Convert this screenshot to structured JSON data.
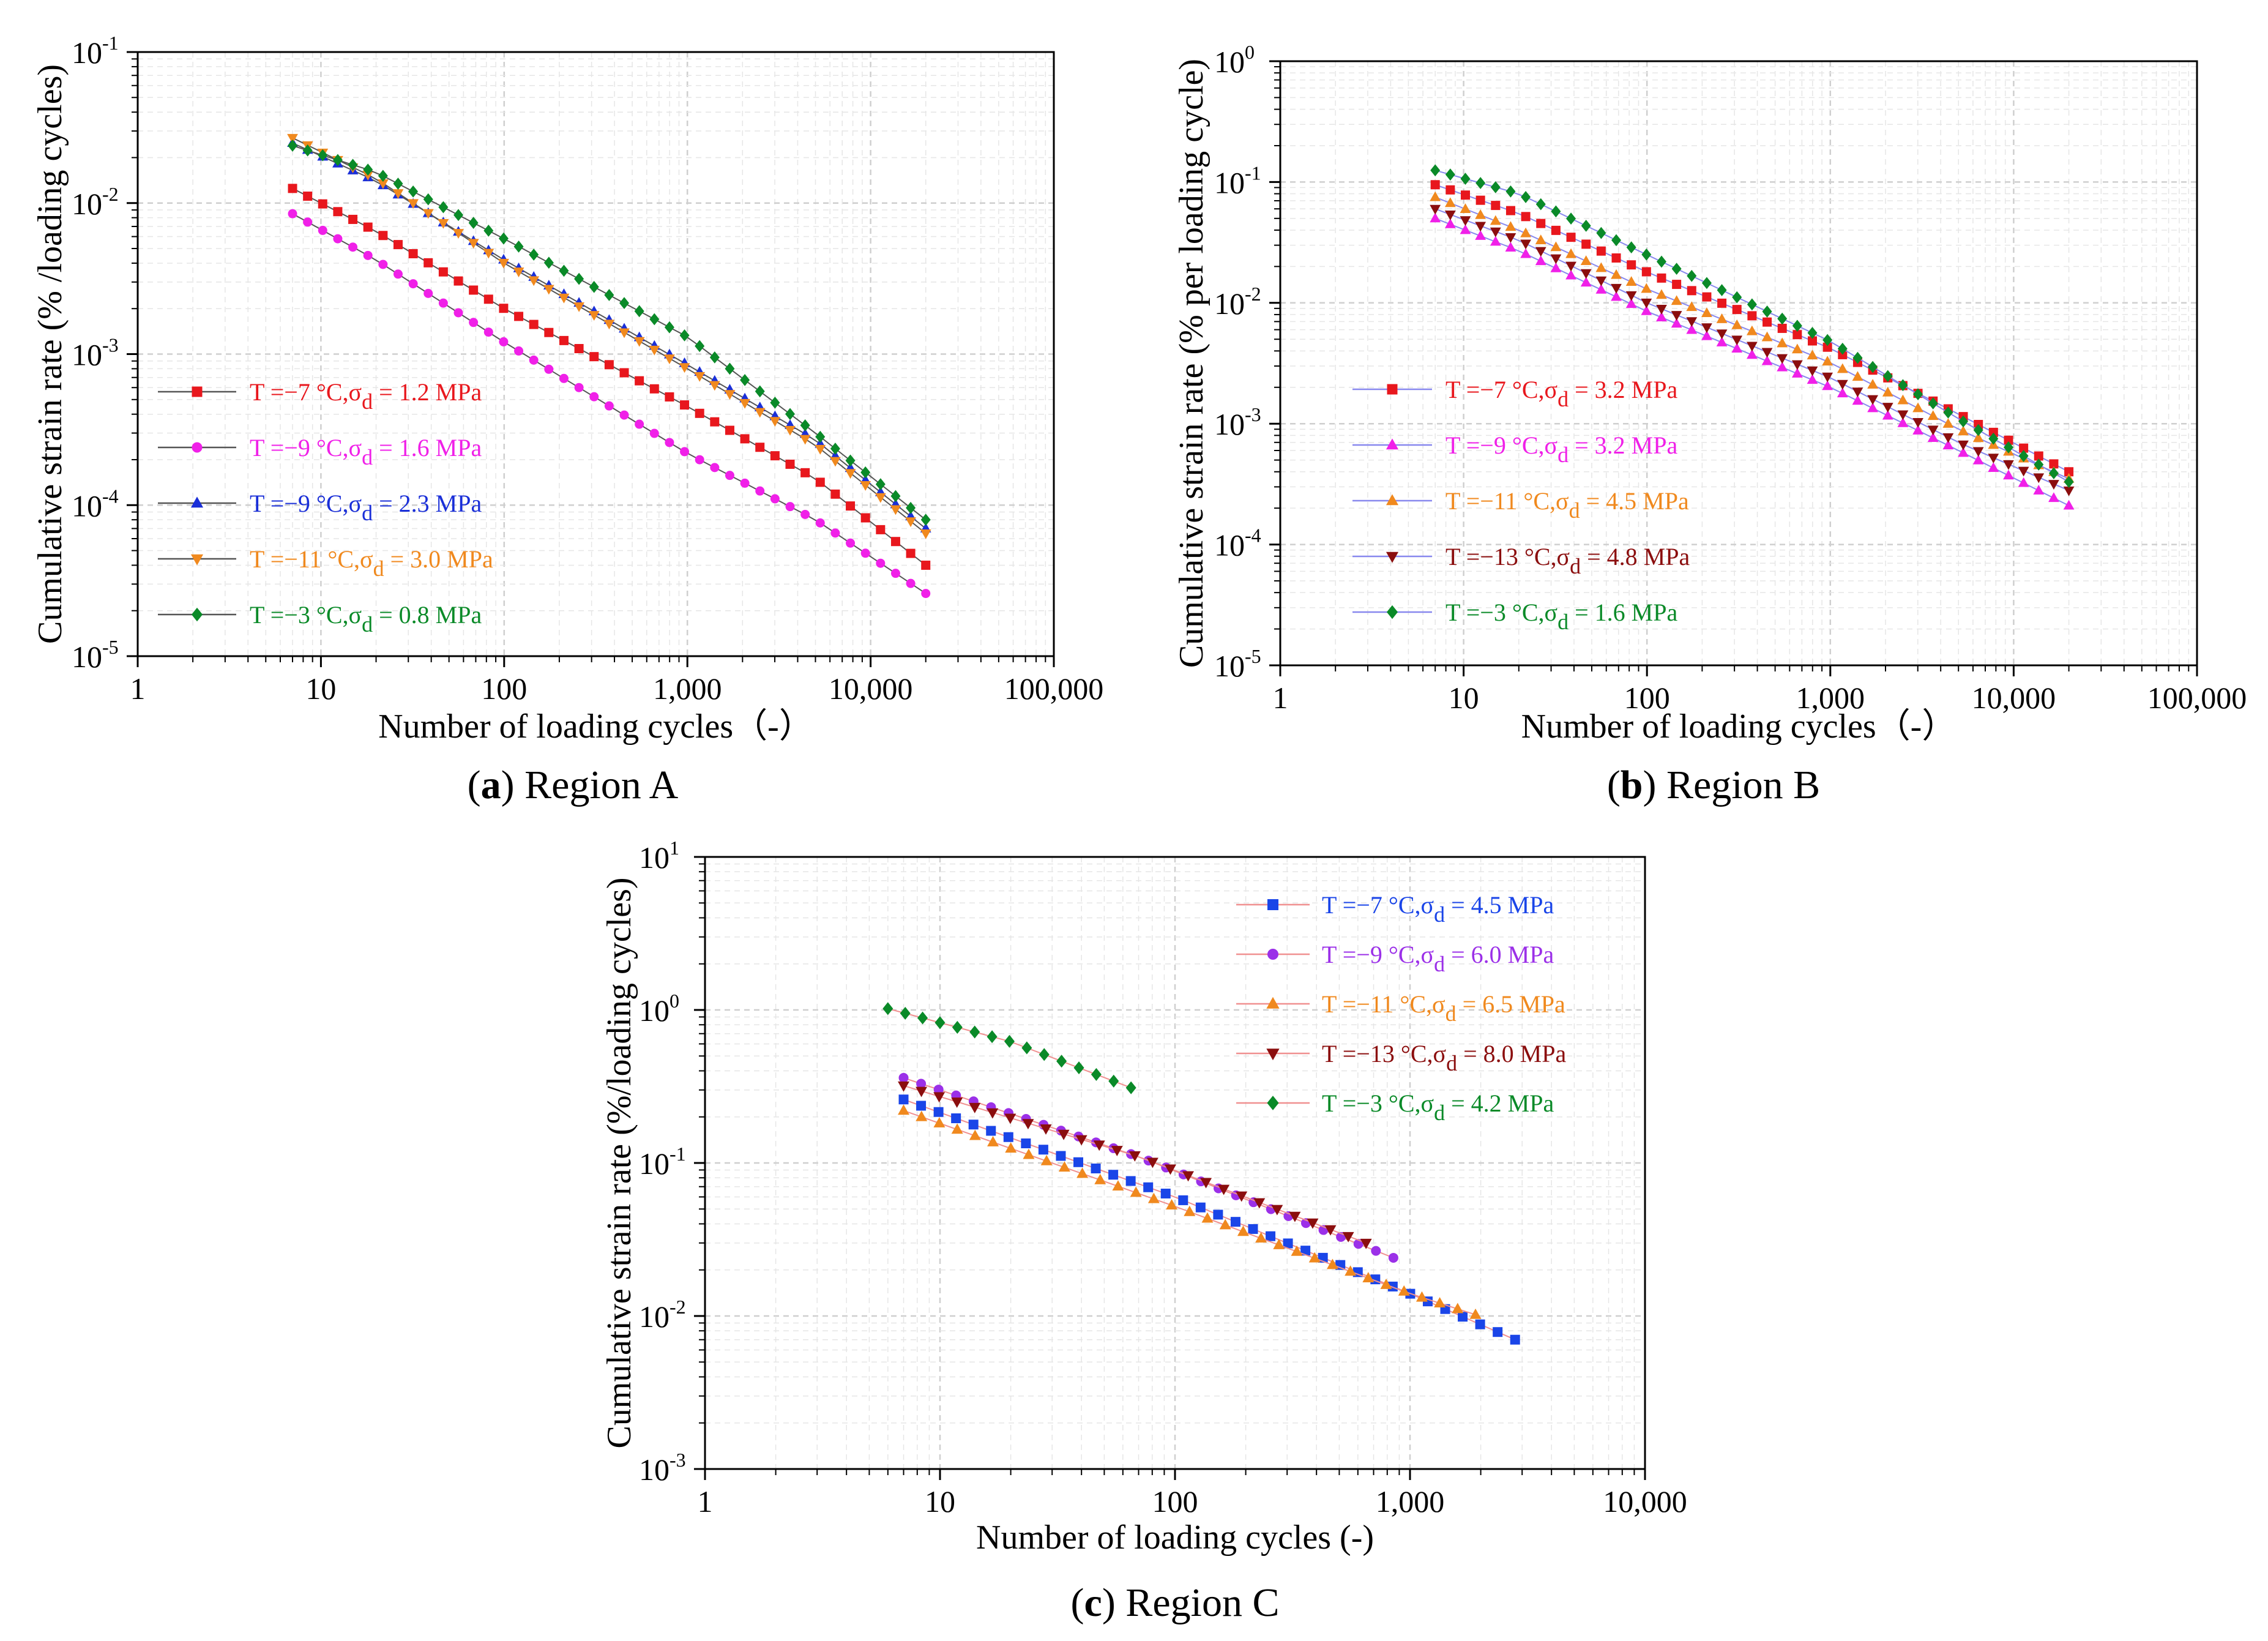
{
  "chart_data": [
    {
      "type": "line",
      "panel": "a",
      "caption_letter": "a",
      "caption_text": ") Region A",
      "xlabel": "Number of loading cycles（-）",
      "ylabel": "Cumulative strain rate (% /loading cycles)",
      "xscale": "log",
      "yscale": "log",
      "xlim": [
        1,
        100000
      ],
      "ylim": [
        1e-05,
        0.1
      ],
      "grid": true,
      "legend_position": "left",
      "x_tick_labels": [
        "1",
        "10",
        "100",
        "1,000",
        "10,000",
        "100,000"
      ],
      "y_tick_labels": [
        {
          "base": "10",
          "exp": "-5"
        },
        {
          "base": "10",
          "exp": "-4"
        },
        {
          "base": "10",
          "exp": "-3"
        },
        {
          "base": "10",
          "exp": "-2"
        },
        {
          "base": "10",
          "exp": "-1"
        }
      ],
      "series": [
        {
          "name": "T =−7 °C,σd = 1.2 MPa",
          "label_pre": "T =−7 °C,σ",
          "label_sub": "d",
          "label_post": " = 1.2 MPa",
          "color": "#e8171d",
          "marker": "square",
          "line_color": "#555555",
          "points": [
            [
              7,
              0.0125
            ],
            [
              20,
              0.0065
            ],
            [
              100,
              0.002
            ],
            [
              1000,
              0.00045
            ],
            [
              5000,
              0.00015
            ],
            [
              20000,
              4e-05
            ]
          ]
        },
        {
          "name": "T =−9 °C,σd = 1.6 MPa",
          "label_pre": "T =−9 °C,σ",
          "label_sub": "d",
          "label_post": " = 1.6 MPa",
          "color": "#f020e8",
          "marker": "circle",
          "line_color": "#555555",
          "points": [
            [
              7,
              0.0085
            ],
            [
              20,
              0.0042
            ],
            [
              100,
              0.0012
            ],
            [
              1000,
              0.00022
            ],
            [
              5000,
              8e-05
            ],
            [
              20000,
              2.6e-05
            ]
          ]
        },
        {
          "name": "T =−9 °C,σd = 2.3 MPa",
          "label_pre": "T =−9 °C,σ",
          "label_sub": "d",
          "label_post": " = 2.3 MPa",
          "color": "#1a2fd8",
          "marker": "triangle-up",
          "line_color": "#555555",
          "points": [
            [
              7,
              0.025
            ],
            [
              20,
              0.014
            ],
            [
              100,
              0.0042
            ],
            [
              1000,
              0.00085
            ],
            [
              5000,
              0.00027
            ],
            [
              20000,
              7e-05
            ]
          ]
        },
        {
          "name": "T =−11 °C,σd = 3.0 MPa",
          "label_pre": "T =−11 °C,σ",
          "label_sub": "d",
          "label_post": " = 3.0 MPa",
          "color": "#f0891e",
          "marker": "triangle-down",
          "line_color": "#555555",
          "points": [
            [
              7,
              0.027
            ],
            [
              20,
              0.0145
            ],
            [
              100,
              0.004
            ],
            [
              1000,
              0.0008
            ],
            [
              5000,
              0.00025
            ],
            [
              20000,
              6.5e-05
            ]
          ]
        },
        {
          "name": "T =−3 °C,σd = 0.8 MPa",
          "label_pre": "T =−3 °C,σ",
          "label_sub": "d",
          "label_post": " = 0.8 MPa",
          "color": "#0a8a28",
          "marker": "diamond",
          "line_color": "#555555",
          "points": [
            [
              7,
              0.024
            ],
            [
              20,
              0.016
            ],
            [
              100,
              0.0058
            ],
            [
              1000,
              0.0013
            ],
            [
              5000,
              0.0003
            ],
            [
              20000,
              8e-05
            ]
          ]
        }
      ]
    },
    {
      "type": "line",
      "panel": "b",
      "caption_letter": "b",
      "caption_text": ") Region B",
      "xlabel": "Number of loading cycles（-）",
      "ylabel": "Cumulative strain rate (% per loading cycle)",
      "xscale": "log",
      "yscale": "log",
      "xlim": [
        1,
        100000
      ],
      "ylim": [
        1e-05,
        1
      ],
      "grid": true,
      "legend_position": "left",
      "x_tick_labels": [
        "1",
        "10",
        "100",
        "1,000",
        "10,000",
        "100,000"
      ],
      "y_tick_labels": [
        {
          "base": "10",
          "exp": "-5"
        },
        {
          "base": "10",
          "exp": "-4"
        },
        {
          "base": "10",
          "exp": "-3"
        },
        {
          "base": "10",
          "exp": "-2"
        },
        {
          "base": "10",
          "exp": "-1"
        },
        {
          "base": "10",
          "exp": "0"
        }
      ],
      "series": [
        {
          "name": "T =−7 °C,σd = 3.2 MPa",
          "label_pre": "T =−7 °C,σ",
          "label_sub": "d",
          "label_post": " = 3.2 MPa",
          "color": "#e8171d",
          "marker": "square",
          "line_color": "#8888ee",
          "points": [
            [
              7,
              0.095
            ],
            [
              20,
              0.055
            ],
            [
              100,
              0.018
            ],
            [
              1000,
              0.0042
            ],
            [
              5000,
              0.0012
            ],
            [
              20000,
              0.0004
            ]
          ]
        },
        {
          "name": "T =−9 °C,σd = 3.2 MPa",
          "label_pre": "T =−9 °C,σ",
          "label_sub": "d",
          "label_post": " = 3.2 MPa",
          "color": "#f020e8",
          "marker": "triangle-up",
          "line_color": "#8888ee",
          "points": [
            [
              7,
              0.05
            ],
            [
              20,
              0.027
            ],
            [
              100,
              0.0085
            ],
            [
              1000,
              0.002
            ],
            [
              5000,
              0.0006
            ],
            [
              20000,
              0.00021
            ]
          ]
        },
        {
          "name": "T =−11 °C,σd = 4.5 MPa",
          "label_pre": "T =−11 °C,σ",
          "label_sub": "d",
          "label_post": " = 4.5 MPa",
          "color": "#f0891e",
          "marker": "triangle-up",
          "line_color": "#8888ee",
          "points": [
            [
              7,
              0.075
            ],
            [
              20,
              0.04
            ],
            [
              100,
              0.013
            ],
            [
              1000,
              0.0032
            ],
            [
              5000,
              0.0009
            ],
            [
              20000,
              0.00035
            ]
          ]
        },
        {
          "name": "T =−13 °C,σd = 4.8 MPa",
          "label_pre": "T =−13 °C,σ",
          "label_sub": "d",
          "label_post": " = 4.8 MPa",
          "color": "#8b0e0e",
          "marker": "triangle-down",
          "line_color": "#8888ee",
          "points": [
            [
              7,
              0.06
            ],
            [
              20,
              0.033
            ],
            [
              100,
              0.01
            ],
            [
              1000,
              0.0024
            ],
            [
              5000,
              0.0007
            ],
            [
              20000,
              0.00028
            ]
          ]
        },
        {
          "name": "T =−3 °C,σd = 1.6 MPa",
          "label_pre": "T =−3 °C,σ",
          "label_sub": "d",
          "label_post": " = 1.6 MPa",
          "color": "#0a8a28",
          "marker": "diamond",
          "line_color": "#8888ee",
          "points": [
            [
              7,
              0.125
            ],
            [
              20,
              0.08
            ],
            [
              100,
              0.025
            ],
            [
              1000,
              0.0048
            ],
            [
              5000,
              0.0011
            ],
            [
              20000,
              0.00033
            ]
          ]
        }
      ]
    },
    {
      "type": "line",
      "panel": "c",
      "caption_letter": "c",
      "caption_text": ") Region C",
      "xlabel": "Number of loading cycles (-)",
      "ylabel": "Cumulative strain rate (%/loading cycles)",
      "xscale": "log",
      "yscale": "log",
      "xlim": [
        1,
        10000
      ],
      "ylim": [
        0.001,
        10
      ],
      "grid": true,
      "legend_position": "top-right",
      "x_tick_labels": [
        "1",
        "10",
        "100",
        "1,000",
        "10,000"
      ],
      "y_tick_labels": [
        {
          "base": "10",
          "exp": "-3"
        },
        {
          "base": "10",
          "exp": "-2"
        },
        {
          "base": "10",
          "exp": "-1"
        },
        {
          "base": "10",
          "exp": "0"
        },
        {
          "base": "10",
          "exp": "1"
        }
      ],
      "series": [
        {
          "name": "T =−7 °C,σd = 4.5 MPa",
          "label_pre": "T =−7 °C,σ",
          "label_sub": "d",
          "label_post": " = 4.5 MPa",
          "color": "#1a45e8",
          "marker": "square",
          "line_color": "#f09090",
          "points": [
            [
              7,
              0.26
            ],
            [
              100,
              0.06
            ],
            [
              1000,
              0.014
            ],
            [
              2800,
              0.007
            ]
          ]
        },
        {
          "name": "T =−9 °C,σd = 6.0 MPa",
          "label_pre": "T =−9 °C,σ",
          "label_sub": "d",
          "label_post": " = 6.0 MPa",
          "color": "#9b30e8",
          "marker": "circle",
          "line_color": "#f09090",
          "points": [
            [
              7,
              0.36
            ],
            [
              70,
              0.11
            ],
            [
              850,
              0.024
            ]
          ]
        },
        {
          "name": "T =−11 °C,σd = 6.5 MPa",
          "label_pre": "T =−11 °C,σ",
          "label_sub": "d",
          "label_post": " = 6.5 MPa",
          "color": "#f0891e",
          "marker": "triangle-up",
          "line_color": "#f09090",
          "points": [
            [
              7,
              0.22
            ],
            [
              100,
              0.052
            ],
            [
              1000,
              0.014
            ],
            [
              1900,
              0.0102
            ]
          ]
        },
        {
          "name": "T =−13 °C,σd = 8.0 MPa",
          "label_pre": "T =−13 °C,σ",
          "label_sub": "d",
          "label_post": " = 8.0 MPa",
          "color": "#8b0e0e",
          "marker": "triangle-down",
          "line_color": "#f09090",
          "points": [
            [
              7,
              0.32
            ],
            [
              70,
              0.11
            ],
            [
              650,
              0.03
            ]
          ]
        },
        {
          "name": "T =−3 °C,σd = 4.2 MPa",
          "label_pre": "T =−3 °C,σ",
          "label_sub": "d",
          "label_post": " = 4.2 MPa",
          "color": "#0a8a28",
          "marker": "diamond",
          "line_color": "#f09090",
          "points": [
            [
              6,
              1.02
            ],
            [
              20,
              0.62
            ],
            [
              65,
              0.31
            ]
          ]
        }
      ]
    }
  ]
}
